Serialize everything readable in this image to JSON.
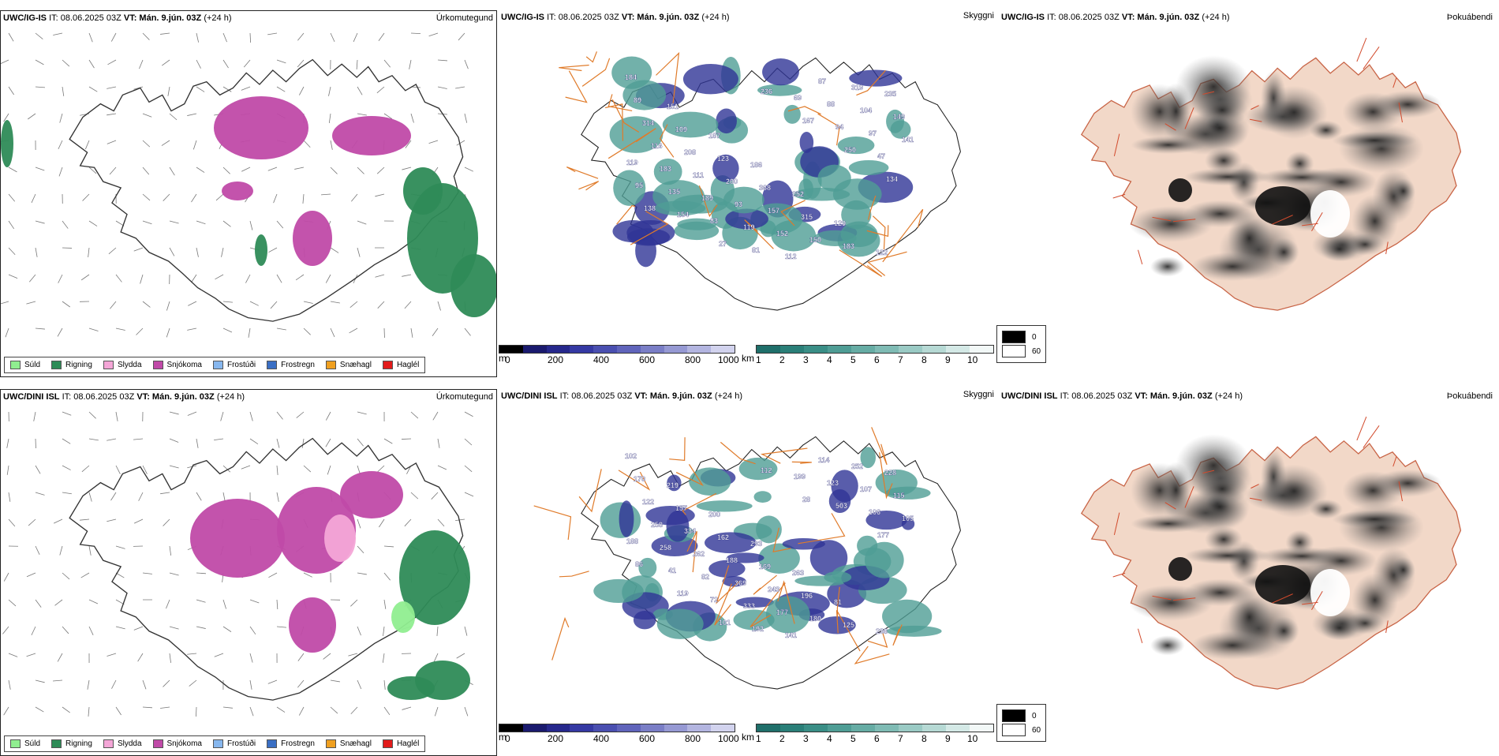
{
  "colors": {
    "sudd": "#90ee90",
    "rigning": "#2e8b57",
    "slydda": "#f4a6d7",
    "snjokoma": "#c04aa8",
    "frostudi": "#87b7ee",
    "frostregn": "#3a6fc4",
    "snaehagl": "#f0a020",
    "haglel": "#e21b1b",
    "road": "#e07b2a",
    "land_fog": "#f2d8c8"
  },
  "rows": [
    {
      "model": "UWC/IG-IS",
      "issue": "IT: 08.06.2025 03Z",
      "valid": "VT: Mán. 9.jún. 03Z",
      "lead": "(+24 h)",
      "ceiling_labels": [
        "184",
        "151",
        "187",
        "186",
        "252",
        "129",
        "122",
        "89",
        "109",
        "123",
        "368",
        "315",
        "183",
        "235",
        "314",
        "208",
        "200",
        "157",
        "150",
        "319",
        "149",
        "116",
        "111",
        "93",
        "152",
        "87",
        "104",
        "141",
        "183",
        "189",
        "119",
        "112",
        "88",
        "97",
        "119",
        "135",
        "83",
        "81",
        "69",
        "94",
        "47",
        "95",
        "154",
        "27",
        "236",
        "167",
        "250",
        "134",
        "138"
      ]
    },
    {
      "model": "UWC/DINI ISL",
      "issue": "IT: 08.06.2025 03Z",
      "valid": "VT: Mán. 9.jún. 03Z",
      "lead": "(+24 h)",
      "ceiling_labels": [
        "102",
        "219",
        "200",
        "293",
        "263",
        "81",
        "238",
        "170",
        "157",
        "162",
        "169",
        "196",
        "125",
        "228",
        "122",
        "334",
        "188",
        "243",
        "180",
        "252",
        "115",
        "258",
        "262",
        "369",
        "177",
        "114",
        "107",
        "105",
        "258",
        "82",
        "333",
        "141",
        "123",
        "106",
        "188",
        "41",
        "72",
        "192",
        "199",
        "503",
        "177",
        "86",
        "119",
        "101",
        "112",
        "28"
      ]
    }
  ],
  "panel_titles": [
    "Úrkomutegund",
    "Skyggni",
    "Þokuábendi"
  ],
  "precip_legend": [
    "Súld",
    "Rigning",
    "Slydda",
    "Snjókoma",
    "Frostúði",
    "Frostregn",
    "Snæhagl",
    "Haglél"
  ],
  "ceiling_bar": {
    "unit": "m",
    "ticks": [
      "0",
      "200",
      "400",
      "600",
      "800",
      "1000"
    ]
  },
  "visibility_bar": {
    "unit": "km",
    "ticks": [
      "1",
      "2",
      "3",
      "4",
      "5",
      "6",
      "7",
      "8",
      "9",
      "10"
    ]
  },
  "fog_legend": [
    "0",
    "60"
  ]
}
